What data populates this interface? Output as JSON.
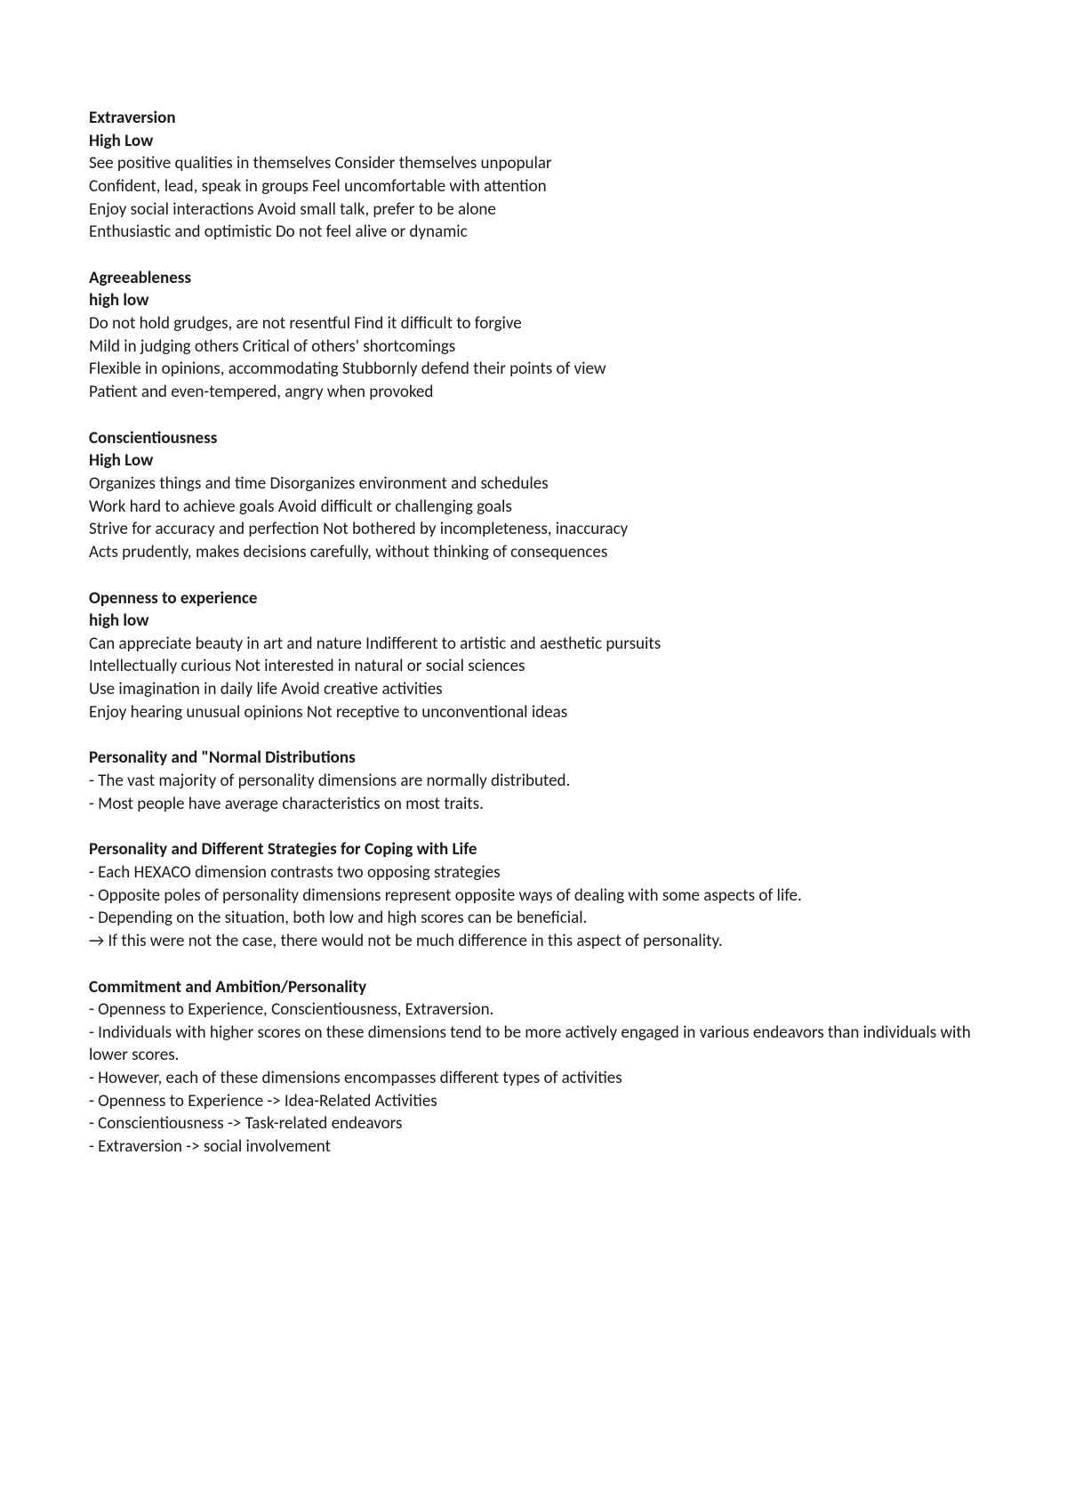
{
  "sections": [
    {
      "heading": "Extraversion",
      "subheading": "High Low",
      "lines": [
        "See positive qualities in themselves Consider themselves unpopular",
        "Confident, lead, speak in groups Feel uncomfortable with attention",
        "Enjoy social interactions Avoid small talk, prefer to be alone",
        "Enthusiastic and optimistic Do not feel alive or dynamic"
      ]
    },
    {
      "heading": " Agreeableness",
      "subheading": "high low",
      "lines": [
        "Do not hold grudges, are not resentful Find it difficult to forgive",
        "Mild in judging others Critical of others' shortcomings",
        "Flexible in opinions, accommodating Stubbornly defend their points of view",
        "Patient and even-tempered, angry when provoked"
      ]
    },
    {
      "heading": "Conscientiousness",
      "subheading": "High Low",
      "lines": [
        "Organizes things and time Disorganizes environment and schedules",
        "Work hard to achieve goals Avoid difficult or challenging goals",
        "Strive for accuracy and perfection Not bothered by incompleteness, inaccuracy",
        "Acts prudently, makes decisions carefully, without thinking of consequences"
      ]
    },
    {
      "heading": "Openness to experience",
      "subheading": "high low",
      "lines": [
        "Can appreciate beauty in art and nature Indifferent to artistic and aesthetic pursuits",
        "Intellectually curious Not interested in natural or social sciences",
        "Use imagination in daily life Avoid creative activities",
        "Enjoy hearing unusual opinions Not receptive to unconventional ideas"
      ]
    },
    {
      "heading": "Personality and \"Normal Distributions",
      "subheading": null,
      "lines": [
        "- The vast majority of personality dimensions are normally distributed.",
        "- Most people have average characteristics on most traits."
      ]
    },
    {
      "heading": "Personality and Different Strategies for Coping with Life",
      "subheading": null,
      "lines": [
        "- Each HEXACO dimension contrasts two opposing strategies",
        "- Opposite poles of personality dimensions represent opposite ways of dealing with some aspects of life.",
        "- Depending on the situation, both low and high scores can be beneficial.",
        "→ If this were not the case, there would not be much difference in this aspect of personality."
      ]
    },
    {
      "heading": "Commitment and Ambition/Personality",
      "subheading": null,
      "lines": [
        "- Openness to Experience, Conscientiousness, Extraversion.",
        "- Individuals with higher scores on these dimensions tend to be more actively engaged in various endeavors than individuals with lower scores.",
        "- However, each of these dimensions encompasses different types of activities",
        "- Openness to Experience -> Idea-Related Activities",
        "- Conscientiousness -> Task-related endeavors",
        "- Extraversion -> social involvement"
      ]
    }
  ]
}
